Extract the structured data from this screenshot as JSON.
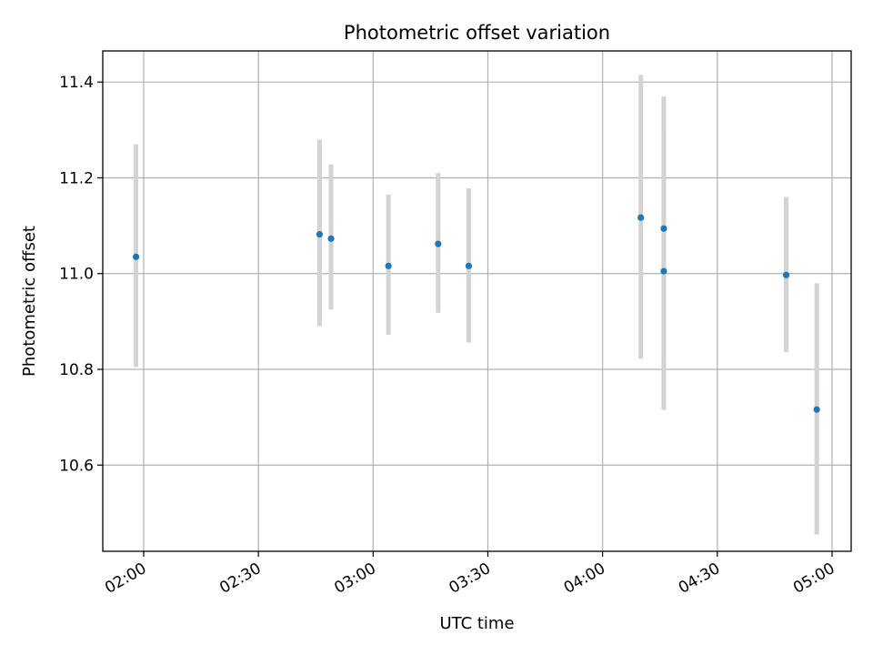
{
  "chart_data": {
    "type": "scatter",
    "title": "Photometric offset variation",
    "xlabel": "UTC time",
    "ylabel": "Photometric offset",
    "x_tick_labels": [
      "02:00",
      "02:30",
      "03:00",
      "03:30",
      "04:00",
      "04:30",
      "05:00"
    ],
    "x_ticks_minutes": [
      120,
      150,
      180,
      210,
      240,
      270,
      300
    ],
    "y_tick_labels": [
      "10.6",
      "10.8",
      "11.0",
      "11.2",
      "11.4"
    ],
    "y_ticks": [
      10.6,
      10.8,
      11.0,
      11.2,
      11.4
    ],
    "xlim_minutes": [
      109.3,
      305.0
    ],
    "ylim": [
      10.42,
      11.465
    ],
    "grid": true,
    "points": [
      {
        "time": "01:58",
        "y": 11.035,
        "yerr_low": 10.805,
        "yerr_high": 11.27
      },
      {
        "time": "02:46",
        "y": 11.082,
        "yerr_low": 10.89,
        "yerr_high": 11.28
      },
      {
        "time": "02:49",
        "y": 11.073,
        "yerr_low": 10.925,
        "yerr_high": 11.228
      },
      {
        "time": "03:04",
        "y": 11.016,
        "yerr_low": 10.872,
        "yerr_high": 11.165
      },
      {
        "time": "03:17",
        "y": 11.062,
        "yerr_low": 10.918,
        "yerr_high": 11.21
      },
      {
        "time": "03:25",
        "y": 11.016,
        "yerr_low": 10.856,
        "yerr_high": 11.178
      },
      {
        "time": "04:10",
        "y": 11.117,
        "yerr_low": 10.822,
        "yerr_high": 11.415
      },
      {
        "time": "04:16",
        "y": 11.005,
        "yerr_low": 10.715,
        "yerr_high": 11.297
      },
      {
        "time": "04:16",
        "y": 11.094,
        "yerr_low": 10.822,
        "yerr_high": 11.37
      },
      {
        "time": "04:48",
        "y": 10.997,
        "yerr_low": 10.836,
        "yerr_high": 11.16
      },
      {
        "time": "04:56",
        "y": 10.716,
        "yerr_low": 10.455,
        "yerr_high": 10.98
      }
    ],
    "marker_color": "#1f77b4",
    "errorbar_color": "#d3d3d3",
    "grid_color": "#b0b0b0"
  }
}
